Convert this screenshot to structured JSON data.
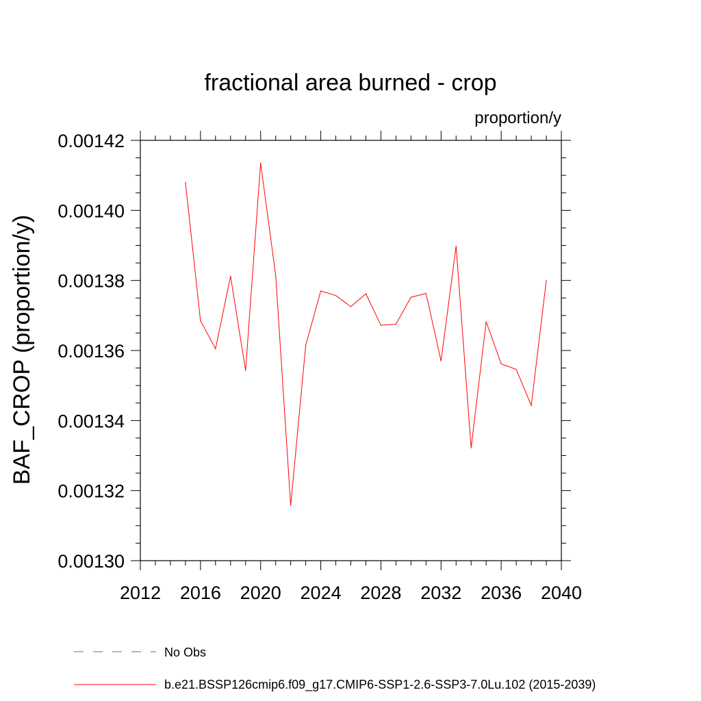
{
  "chart_data": {
    "type": "line",
    "title": "fractional area burned - crop",
    "units_label": "proportion/y",
    "ylabel": "BAF_CROP  (proportion/y)",
    "xlabel": "",
    "xlim": [
      2012,
      2040
    ],
    "ylim": [
      0.0013,
      0.00142
    ],
    "xticks": [
      2012,
      2016,
      2020,
      2024,
      2028,
      2032,
      2036,
      2040
    ],
    "xtick_labels": [
      "2012",
      "2016",
      "2020",
      "2024",
      "2028",
      "2032",
      "2036",
      "2040"
    ],
    "yticks": [
      0.0013,
      0.00132,
      0.00134,
      0.00136,
      0.00138,
      0.0014,
      0.00142
    ],
    "ytick_labels": [
      "0.00130",
      "0.00132",
      "0.00134",
      "0.00136",
      "0.00138",
      "0.00140",
      "0.00142"
    ],
    "grid": false,
    "legend_position": "bottom",
    "series": [
      {
        "name": "b.e21.BSSP126cmip6.f09_g17.CMIP6-SSP1-2.6-SSP3-7.0Lu.102 (2015-2039)",
        "color": "#ff0000",
        "style": "solid",
        "x": [
          2015,
          2016,
          2017,
          2018,
          2019,
          2020,
          2021,
          2022,
          2023,
          2024,
          2025,
          2026,
          2027,
          2028,
          2029,
          2030,
          2031,
          2032,
          2033,
          2034,
          2035,
          2036,
          2037,
          2038,
          2039
        ],
        "y": [
          0.001408,
          0.0013685,
          0.0013605,
          0.0013812,
          0.0013543,
          0.0014135,
          0.0013815,
          0.0013158,
          0.0013615,
          0.001377,
          0.0013757,
          0.0013725,
          0.0013762,
          0.0013672,
          0.0013675,
          0.0013752,
          0.0013763,
          0.001357,
          0.0013898,
          0.0013322,
          0.0013682,
          0.0013562,
          0.0013546,
          0.0013443,
          0.00138
        ]
      }
    ],
    "legend": [
      {
        "label": "No Obs",
        "color": "#6a5acd",
        "style": "dashed"
      },
      {
        "label": "b.e21.BSSP126cmip6.f09_g17.CMIP6-SSP1-2.6-SSP3-7.0Lu.102 (2015-2039)",
        "color": "#ff0000",
        "style": "solid"
      }
    ]
  }
}
